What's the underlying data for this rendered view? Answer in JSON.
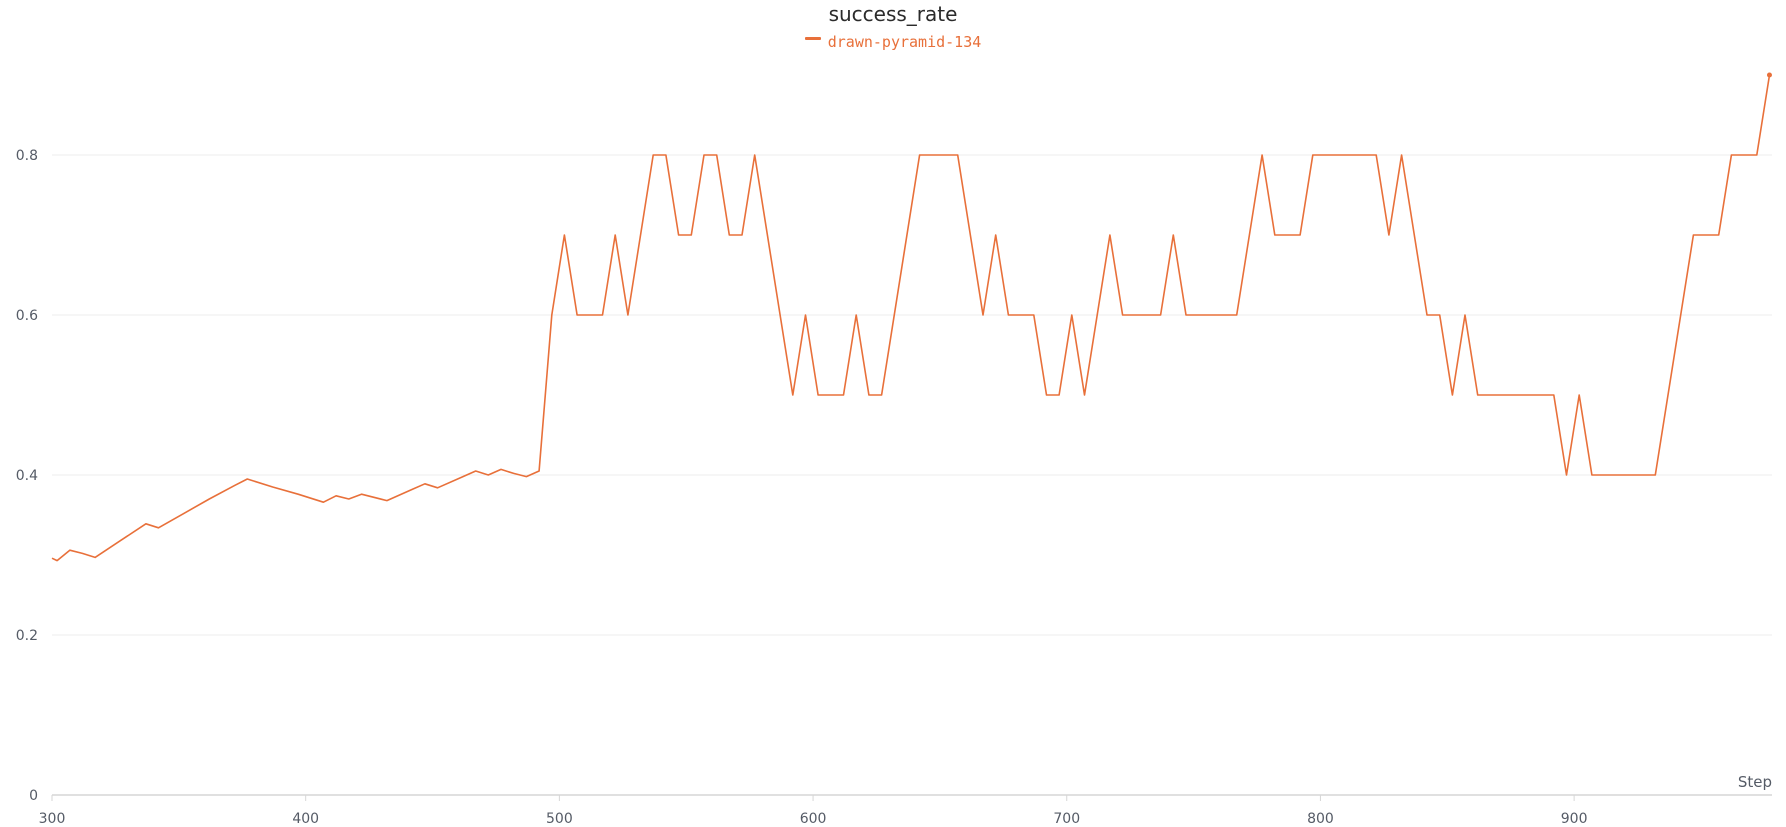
{
  "chart_data": {
    "type": "line",
    "title": "success_rate",
    "xlabel": "Step",
    "ylabel": "",
    "xlim": [
      300,
      978
    ],
    "ylim": [
      0,
      0.92
    ],
    "x_ticks": [
      300,
      400,
      500,
      600,
      700,
      800,
      900
    ],
    "y_ticks": [
      0,
      0.2,
      0.4,
      0.6,
      0.8
    ],
    "y_tick_labels": [
      "0",
      "0.2",
      "0.4",
      "0.6",
      "0.8"
    ],
    "grid": true,
    "legend_position": "top-center",
    "series": [
      {
        "name": "drawn-pyramid-134",
        "color": "#e8703a",
        "points": [
          [
            300,
            0.296
          ],
          [
            302,
            0.293
          ],
          [
            307,
            0.306
          ],
          [
            312,
            0.302
          ],
          [
            317,
            0.297
          ],
          [
            327,
            0.318
          ],
          [
            337,
            0.339
          ],
          [
            342,
            0.334
          ],
          [
            352,
            0.352
          ],
          [
            362,
            0.37
          ],
          [
            372,
            0.387
          ],
          [
            377,
            0.395
          ],
          [
            387,
            0.385
          ],
          [
            397,
            0.376
          ],
          [
            407,
            0.366
          ],
          [
            412,
            0.374
          ],
          [
            417,
            0.37
          ],
          [
            422,
            0.376
          ],
          [
            432,
            0.368
          ],
          [
            442,
            0.382
          ],
          [
            447,
            0.389
          ],
          [
            452,
            0.384
          ],
          [
            462,
            0.398
          ],
          [
            467,
            0.405
          ],
          [
            472,
            0.4
          ],
          [
            477,
            0.407
          ],
          [
            482,
            0.402
          ],
          [
            487,
            0.398
          ],
          [
            492,
            0.405
          ],
          [
            497,
            0.6
          ],
          [
            502,
            0.7
          ],
          [
            507,
            0.6
          ],
          [
            512,
            0.6
          ],
          [
            517,
            0.6
          ],
          [
            522,
            0.7
          ],
          [
            527,
            0.6
          ],
          [
            537,
            0.8
          ],
          [
            542,
            0.8
          ],
          [
            547,
            0.7
          ],
          [
            552,
            0.7
          ],
          [
            557,
            0.8
          ],
          [
            562,
            0.8
          ],
          [
            567,
            0.7
          ],
          [
            572,
            0.7
          ],
          [
            577,
            0.8
          ],
          [
            592,
            0.5
          ],
          [
            597,
            0.6
          ],
          [
            602,
            0.5
          ],
          [
            607,
            0.5
          ],
          [
            612,
            0.5
          ],
          [
            617,
            0.6
          ],
          [
            622,
            0.5
          ],
          [
            627,
            0.5
          ],
          [
            642,
            0.8
          ],
          [
            647,
            0.8
          ],
          [
            652,
            0.8
          ],
          [
            657,
            0.8
          ],
          [
            667,
            0.6
          ],
          [
            672,
            0.7
          ],
          [
            677,
            0.6
          ],
          [
            682,
            0.6
          ],
          [
            687,
            0.6
          ],
          [
            692,
            0.5
          ],
          [
            697,
            0.5
          ],
          [
            702,
            0.6
          ],
          [
            707,
            0.5
          ],
          [
            717,
            0.7
          ],
          [
            722,
            0.6
          ],
          [
            727,
            0.6
          ],
          [
            737,
            0.6
          ],
          [
            742,
            0.7
          ],
          [
            747,
            0.6
          ],
          [
            752,
            0.6
          ],
          [
            767,
            0.6
          ],
          [
            777,
            0.8
          ],
          [
            782,
            0.7
          ],
          [
            787,
            0.7
          ],
          [
            792,
            0.7
          ],
          [
            797,
            0.8
          ],
          [
            802,
            0.8
          ],
          [
            812,
            0.8
          ],
          [
            822,
            0.8
          ],
          [
            827,
            0.7
          ],
          [
            832,
            0.8
          ],
          [
            842,
            0.6
          ],
          [
            847,
            0.6
          ],
          [
            852,
            0.5
          ],
          [
            857,
            0.6
          ],
          [
            862,
            0.5
          ],
          [
            872,
            0.5
          ],
          [
            882,
            0.5
          ],
          [
            892,
            0.5
          ],
          [
            897,
            0.4
          ],
          [
            902,
            0.5
          ],
          [
            907,
            0.4
          ],
          [
            912,
            0.4
          ],
          [
            922,
            0.4
          ],
          [
            932,
            0.4
          ],
          [
            947,
            0.7
          ],
          [
            952,
            0.7
          ],
          [
            957,
            0.7
          ],
          [
            962,
            0.8
          ],
          [
            967,
            0.8
          ],
          [
            972,
            0.8
          ],
          [
            977,
            0.9
          ]
        ]
      }
    ]
  }
}
